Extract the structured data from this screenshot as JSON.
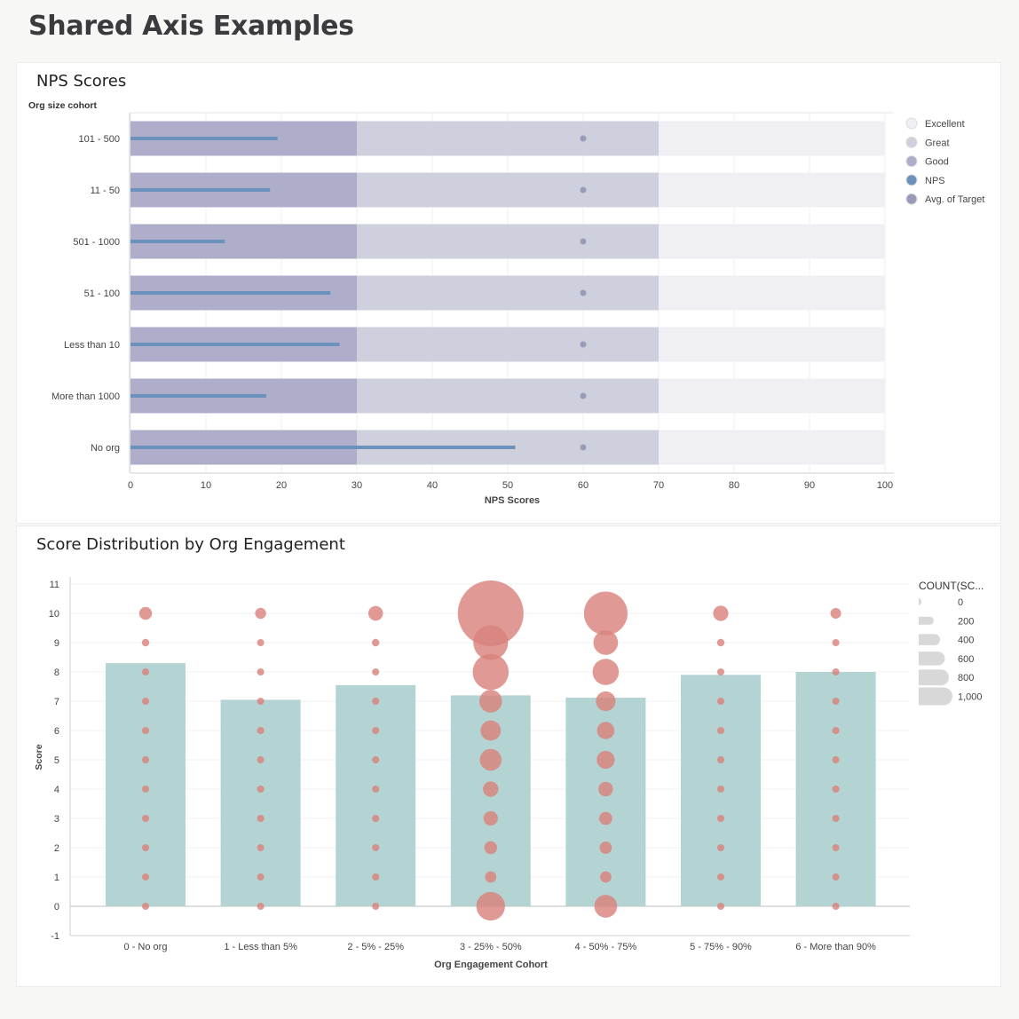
{
  "page": {
    "title": "Shared Axis Examples"
  },
  "colors": {
    "excellent": "#efeff4",
    "great": "#cfd0de",
    "good": "#aeaecb",
    "nps": "#6b91bd",
    "avg_target": "#9a9bb8",
    "bar2": "#b4d3d3",
    "bubble": "#d9827c"
  },
  "chart_data": [
    {
      "type": "bar",
      "title": "NPS Scores",
      "ylabel": "Org size cohort",
      "xlabel": "NPS Scores",
      "categories": [
        "101 - 500",
        "11 - 50",
        "501 - 1000",
        "51 - 100",
        "Less than 10",
        "More than 1000",
        "No org"
      ],
      "xticks": [
        "0",
        "10",
        "20",
        "30",
        "40",
        "50",
        "60",
        "70",
        "80",
        "90",
        "100"
      ],
      "xlim": [
        0,
        100
      ],
      "ranges": {
        "good": 30,
        "great": 70,
        "excellent": 100
      },
      "series": [
        {
          "name": "NPS",
          "values": [
            19.5,
            18.5,
            12.5,
            26.5,
            27.7,
            18,
            51
          ]
        },
        {
          "name": "Avg. of Target",
          "values": [
            60,
            60,
            60,
            60,
            60,
            60,
            60
          ]
        }
      ],
      "legend": {
        "position": "right",
        "items": [
          {
            "label": "Excellent",
            "color": "#efeff4"
          },
          {
            "label": "Great",
            "color": "#cfd0de"
          },
          {
            "label": "Good",
            "color": "#aeaecb"
          },
          {
            "label": "NPS",
            "color": "#6b91bd"
          },
          {
            "label": "Avg. of Target",
            "color": "#9a9bb8"
          }
        ]
      },
      "grid": true
    },
    {
      "type": "scatter",
      "title": "Score Distribution by Org Engagement",
      "xlabel": "Org Engagement Cohort",
      "ylabel": "Score",
      "categories": [
        "0 - No org",
        "1 - Less than 5%",
        "2 - 5% - 25%",
        "3 - 25% - 50%",
        "4 - 50% - 75%",
        "5 - 75% - 90%",
        "6 - More than 90%"
      ],
      "ylim": [
        -1,
        11
      ],
      "yticks": [
        "-1",
        "0",
        "1",
        "2",
        "3",
        "4",
        "5",
        "6",
        "7",
        "8",
        "9",
        "10",
        "11"
      ],
      "bar_values": [
        8.3,
        7.05,
        7.55,
        7.2,
        7.12,
        7.9,
        8.0
      ],
      "bubble_scores": [
        0,
        1,
        2,
        3,
        4,
        5,
        6,
        7,
        8,
        9,
        10
      ],
      "bubble_counts": [
        [
          5,
          3,
          4,
          4,
          5,
          5,
          6,
          7,
          11,
          13,
          38
        ],
        [
          4,
          2,
          3,
          3,
          4,
          4,
          5,
          6,
          8,
          10,
          28
        ],
        [
          5,
          3,
          4,
          4,
          5,
          5,
          6,
          6,
          9,
          13,
          50
        ],
        [
          190,
          30,
          38,
          48,
          55,
          110,
          95,
          120,
          300,
          280,
          1000
        ],
        [
          120,
          30,
          35,
          40,
          50,
          75,
          70,
          90,
          160,
          140,
          440
        ],
        [
          5,
          3,
          4,
          4,
          5,
          5,
          6,
          7,
          11,
          13,
          54
        ],
        [
          4,
          2,
          3,
          3,
          4,
          4,
          5,
          6,
          8,
          10,
          26
        ]
      ],
      "size_legend": {
        "title": "COUNT(SC...",
        "position": "top-right",
        "items": [
          {
            "label": "0",
            "value": 0
          },
          {
            "label": "200",
            "value": 200
          },
          {
            "label": "400",
            "value": 400
          },
          {
            "label": "600",
            "value": 600
          },
          {
            "label": "800",
            "value": 800
          },
          {
            "label": "1,000",
            "value": 1000
          }
        ]
      },
      "grid": true
    }
  ]
}
